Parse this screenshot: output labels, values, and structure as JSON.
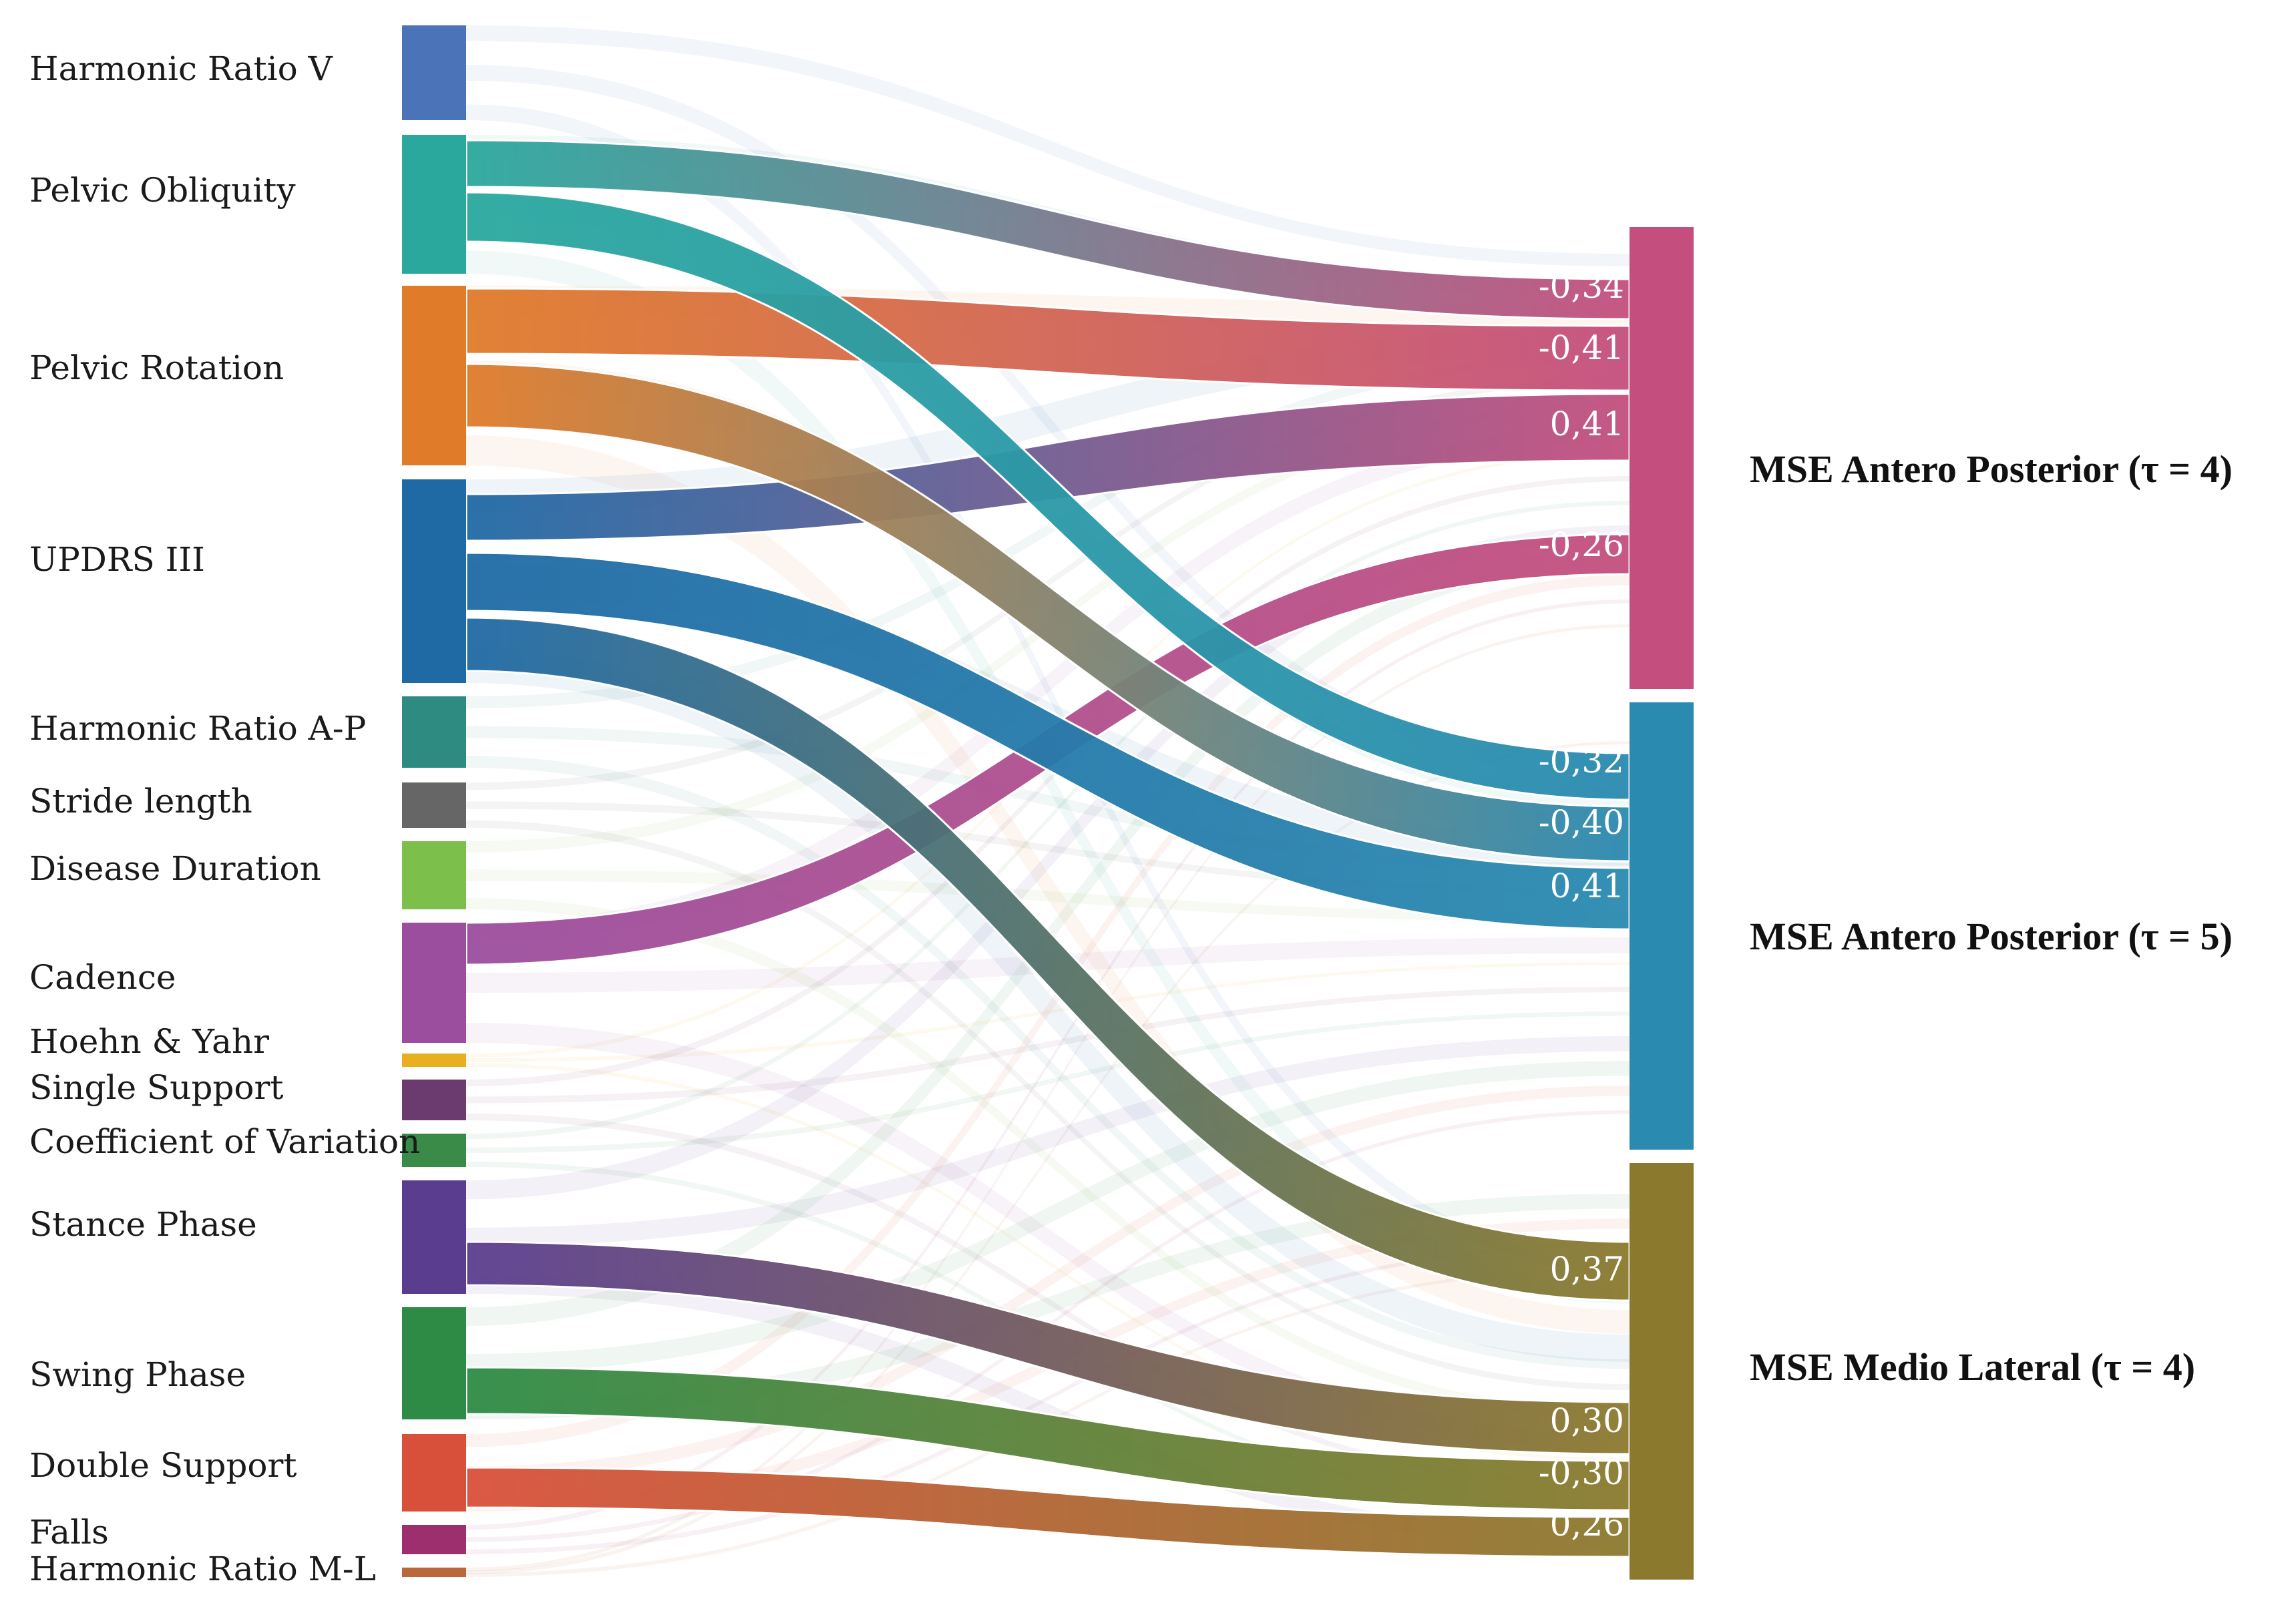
{
  "colors": {
    "harmonic-ratio-v": "#4a73b8",
    "pelvic-obliquity": "#2aa89e",
    "pelvic-rotation": "#e07b2a",
    "updrs-iii": "#1f6aa5",
    "harmonic-ratio-ap": "#2e8b82",
    "stride-length": "#666666",
    "disease-duration": "#7cbf4a",
    "cadence": "#9b4e9e",
    "hoehn-yahr": "#e8b020",
    "single-support": "#6b3a6e",
    "coefficient-of-variation": "#3a8a48",
    "stance-phase": "#5b3d8f",
    "swing-phase": "#2e8b45",
    "double-support": "#d9503a",
    "falls": "#9e2f6e",
    "harmonic-ratio-ml": "#b8683a",
    "mse-ap-4": "#c44f7e",
    "mse-ap-5": "#2a8ab0",
    "mse-ml-4": "#8b7a2e",
    "background-link": "#d5d9de"
  },
  "diagram": {
    "sources": [
      {
        "id": "harmonic-ratio-v",
        "label": "Harmonic Ratio V"
      },
      {
        "id": "pelvic-obliquity",
        "label": "Pelvic Obliquity"
      },
      {
        "id": "pelvic-rotation",
        "label": "Pelvic Rotation"
      },
      {
        "id": "updrs-iii",
        "label": "UPDRS III"
      },
      {
        "id": "harmonic-ratio-ap",
        "label": "Harmonic Ratio A-P"
      },
      {
        "id": "stride-length",
        "label": "Stride length"
      },
      {
        "id": "disease-duration",
        "label": "Disease Duration"
      },
      {
        "id": "cadence",
        "label": "Cadence"
      },
      {
        "id": "hoehn-yahr",
        "label": "Hoehn & Yahr"
      },
      {
        "id": "single-support",
        "label": "Single Support"
      },
      {
        "id": "coefficient-of-variation",
        "label": "Coefficient of Variation"
      },
      {
        "id": "stance-phase",
        "label": "Stance Phase"
      },
      {
        "id": "swing-phase",
        "label": "Swing Phase"
      },
      {
        "id": "double-support",
        "label": "Double Support"
      },
      {
        "id": "falls",
        "label": "Falls"
      },
      {
        "id": "harmonic-ratio-ml",
        "label": "Harmonic Ratio M-L"
      }
    ],
    "targets": [
      {
        "id": "mse-ap-4",
        "label": "MSE Antero Posterior (τ = 4)"
      },
      {
        "id": "mse-ap-5",
        "label": "MSE Antero Posterior (τ = 5)"
      },
      {
        "id": "mse-ml-4",
        "label": "MSE Medio Lateral (τ = 4)"
      }
    ],
    "links": [
      {
        "source": "pelvic-obliquity",
        "target": "mse-ap-4",
        "value": "-0,34"
      },
      {
        "source": "pelvic-rotation",
        "target": "mse-ap-4",
        "value": "-0,41"
      },
      {
        "source": "updrs-iii",
        "target": "mse-ap-4",
        "value": "0,41"
      },
      {
        "source": "cadence",
        "target": "mse-ap-4",
        "value": "-0,26"
      },
      {
        "source": "pelvic-obliquity",
        "target": "mse-ap-5",
        "value": "-0,32"
      },
      {
        "source": "pelvic-rotation",
        "target": "mse-ap-5",
        "value": "-0,40"
      },
      {
        "source": "updrs-iii",
        "target": "mse-ap-5",
        "value": "0,41"
      },
      {
        "source": "updrs-iii",
        "target": "mse-ml-4",
        "value": "0,37"
      },
      {
        "source": "stance-phase",
        "target": "mse-ml-4",
        "value": "0,30"
      },
      {
        "source": "swing-phase",
        "target": "mse-ml-4",
        "value": "-0,30"
      },
      {
        "source": "double-support",
        "target": "mse-ml-4",
        "value": "0,26"
      }
    ]
  }
}
